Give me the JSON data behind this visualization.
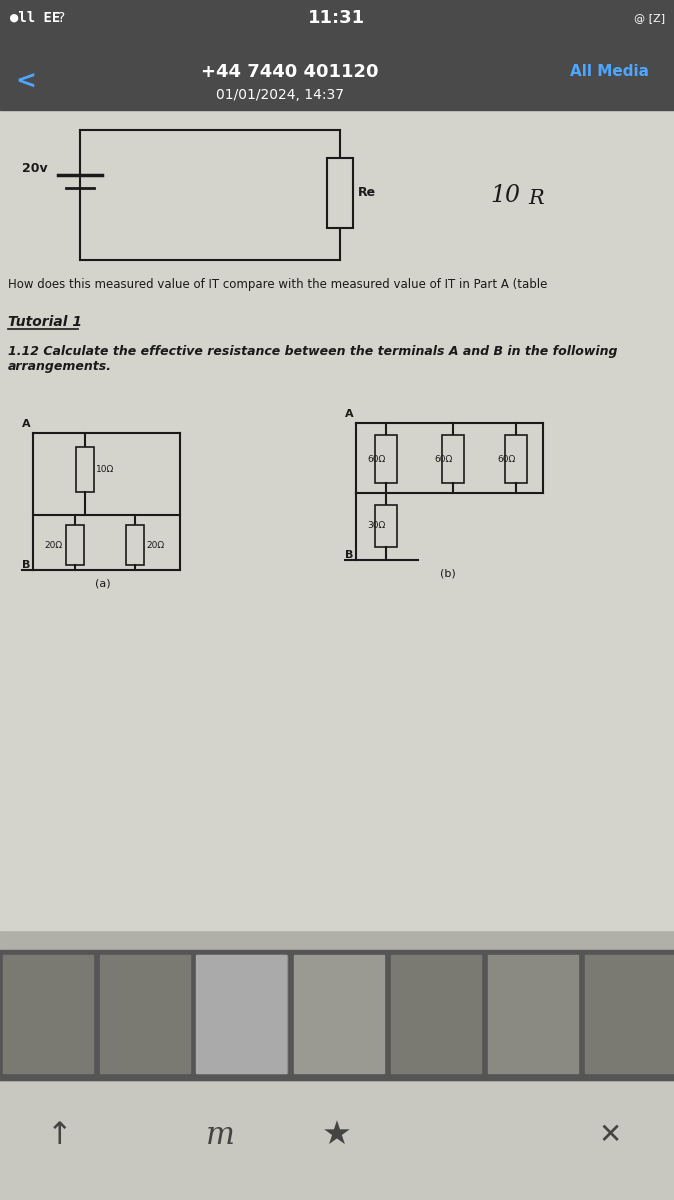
{
  "status_bar_bg": "#4a4a4a",
  "status_bar_text": "#ffffff",
  "time": "11:31",
  "carrier": "EE",
  "phone_number": "+44 7440 401120",
  "date_time": "01/01/2024, 14:37",
  "all_media": "All Media",
  "all_media_color": "#4da6ff",
  "back_arrow_color": "#4da6ff",
  "content_bg": "#b0b0a8",
  "page_bg": "#d4d4cc",
  "question_text": "How does this measured value of IT compare with the measured value of IT in Part A (table",
  "tutorial_title": "Tutorial 1",
  "problem_text": "1.12 Calculate the effective resistance between the terminals A and B in the following\narrangements.",
  "font_color": "#1a1a1a",
  "circuit_color": "#1a1a1a"
}
